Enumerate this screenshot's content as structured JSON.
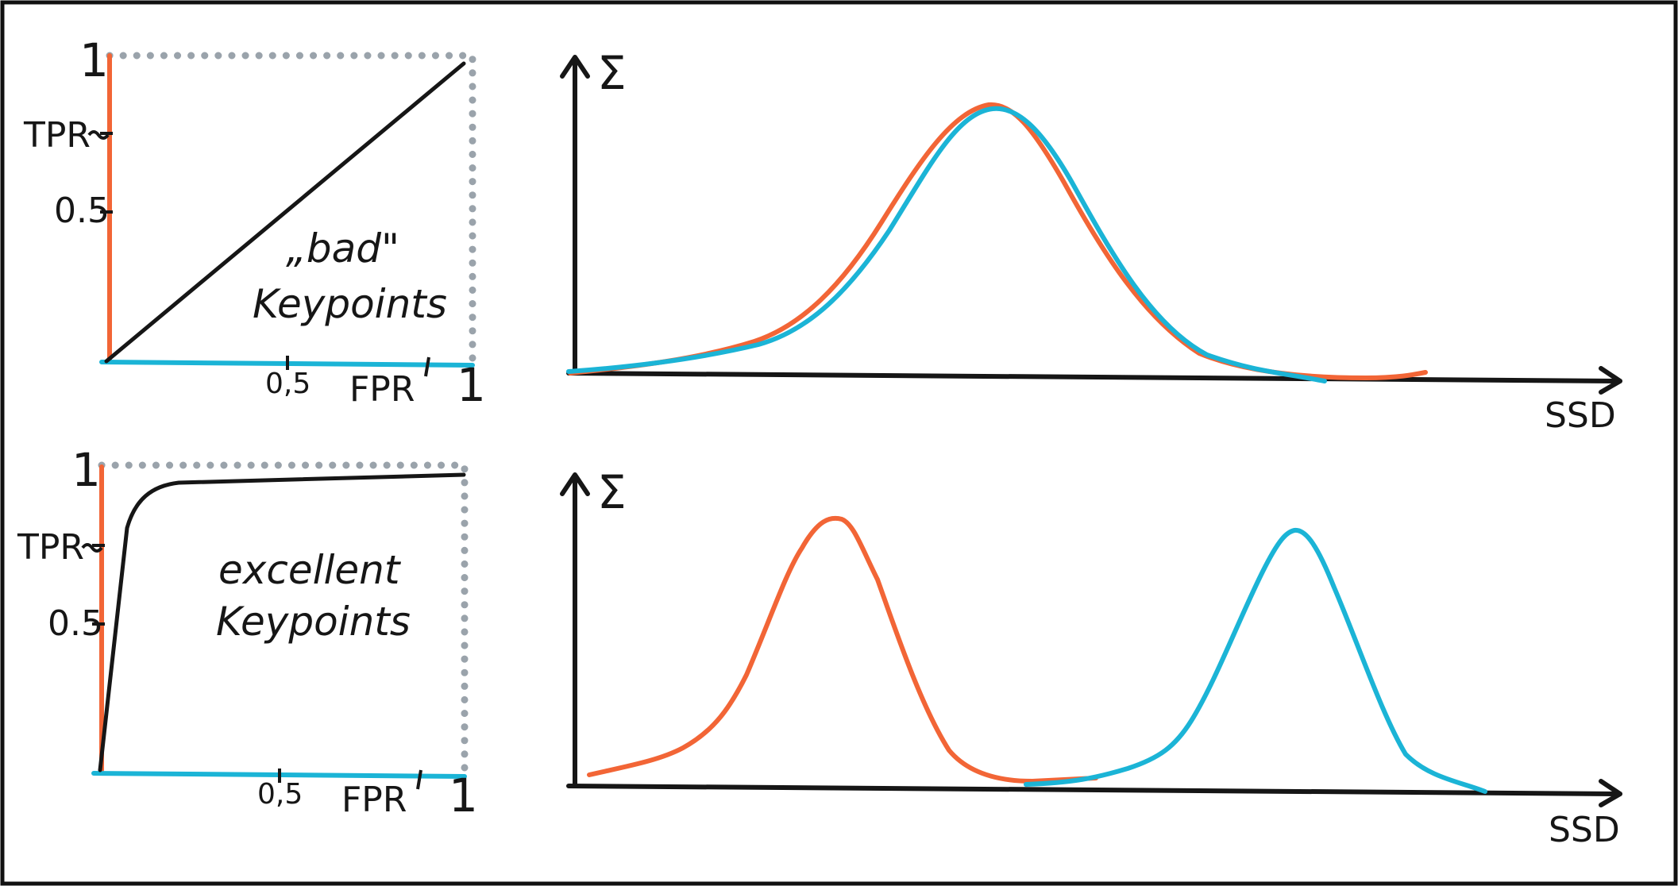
{
  "colors": {
    "frame": "#111111",
    "ink": "#161616",
    "tpr_axis": "#f26536",
    "fpr_axis": "#1bb4d6",
    "border_dots": "#9aa3ab",
    "curve_orange": "#f26536",
    "curve_cyan": "#1bb4d6"
  },
  "roc_bad": {
    "y_top": "1",
    "y_tpr": "TPR",
    "y_half": "0.5",
    "x_half": "0,5",
    "x_fpr": "FPR",
    "x_one": "1",
    "note_line1": "„bad\"",
    "note_line2": "Keypoints"
  },
  "roc_excellent": {
    "y_top": "1",
    "y_tpr": "TPR",
    "y_half": "0.5",
    "x_half": "0,5",
    "x_fpr": "FPR",
    "x_one": "1",
    "note_line1": "excellent",
    "note_line2": "Keypoints"
  },
  "dist_top": {
    "y_symbol": "Σ",
    "x_label": "SSD"
  },
  "dist_bottom": {
    "y_symbol": "Σ",
    "x_label": "SSD"
  }
}
